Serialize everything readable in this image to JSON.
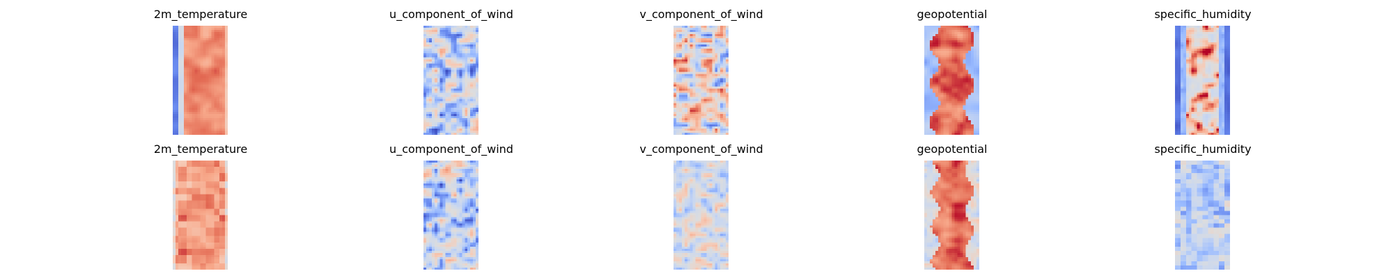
{
  "chart_data": {
    "type": "heatmap",
    "colormap": "coolwarm",
    "axes": "off",
    "grid": false,
    "colormap_stops": [
      "#3b4cc0",
      "#6788ee",
      "#9abbff",
      "#c9d7f0",
      "#dddddd",
      "#f6cbb7",
      "#f7a789",
      "#e36a53",
      "#b40426"
    ],
    "rows": [
      {
        "panels": [
          {
            "title": "2m_temperature",
            "pattern": "banded_warm",
            "seed": 11
          },
          {
            "title": "u_component_of_wind",
            "pattern": "noisy_cool",
            "seed": 12
          },
          {
            "title": "v_component_of_wind",
            "pattern": "noisy_mixed",
            "seed": 13
          },
          {
            "title": "geopotential",
            "pattern": "banded_warm_wavy",
            "seed": 14
          },
          {
            "title": "specific_humidity",
            "pattern": "central_warm_cold_edges",
            "seed": 15
          }
        ]
      },
      {
        "panels": [
          {
            "title": "2m_temperature",
            "pattern": "blocky_warm",
            "seed": 21
          },
          {
            "title": "u_component_of_wind",
            "pattern": "noisy_cool",
            "seed": 22
          },
          {
            "title": "v_component_of_wind",
            "pattern": "noisy_cool_light",
            "seed": 23
          },
          {
            "title": "geopotential",
            "pattern": "banded_warm_noisy",
            "seed": 24
          },
          {
            "title": "specific_humidity",
            "pattern": "noisy_cool_blocky",
            "seed": 25
          }
        ]
      }
    ]
  }
}
